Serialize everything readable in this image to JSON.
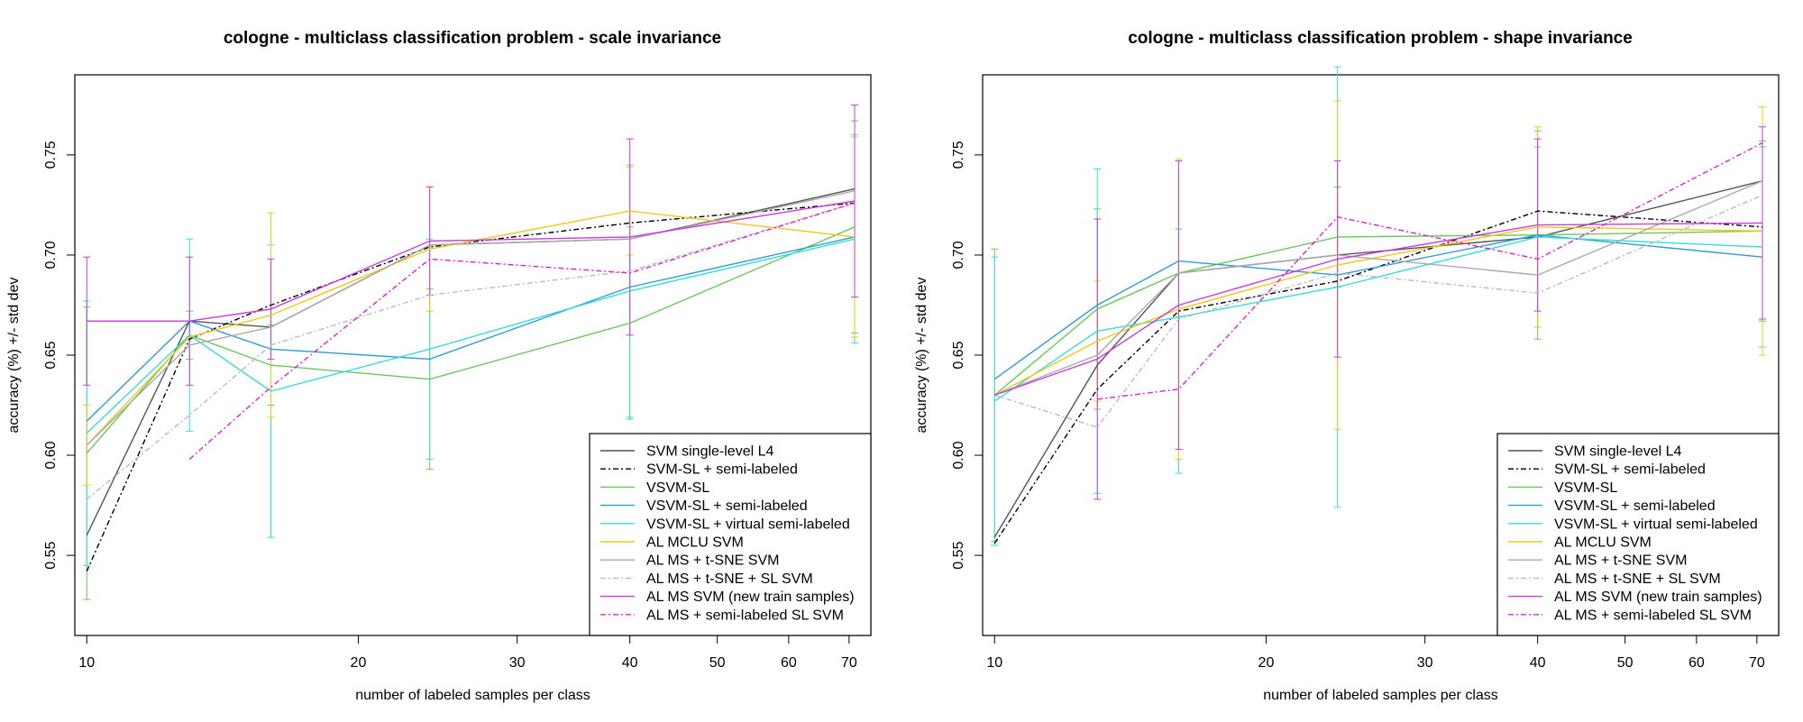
{
  "chart_data": [
    {
      "type": "line",
      "title": "cologne - multiclass classification problem - scale invariance",
      "xlabel": "number of labeled samples per class",
      "ylabel": "accuracy (%) +/- std dev",
      "x_scale": "log",
      "xlim": [
        9.7,
        74
      ],
      "ylim": [
        0.51,
        0.79
      ],
      "xticks": [
        10,
        20,
        30,
        40,
        50,
        60,
        70
      ],
      "yticks": [
        0.55,
        0.6,
        0.65,
        0.7,
        0.75
      ],
      "xtick_labels": [
        "10",
        "20",
        "30",
        "40",
        "50",
        "60",
        "70"
      ],
      "ytick_labels": [
        "0.55",
        "0.60",
        "0.65",
        "0.70",
        "0.75"
      ],
      "legend_position": "bottom-right",
      "x": [
        10,
        13,
        16,
        24,
        40,
        71
      ],
      "series": [
        {
          "name": "SVM single-level L4",
          "color": "#555555",
          "dash": "",
          "values": [
            0.56,
            0.667,
            0.664,
            0.705,
            0.708,
            0.733
          ],
          "err": []
        },
        {
          "name": "SVM-SL + semi-labeled",
          "color": "#000000",
          "dash": "6,3,2,3",
          "values": [
            0.542,
            0.658,
            0.675,
            0.704,
            0.716,
            0.726
          ],
          "err": []
        },
        {
          "name": "VSVM-SL",
          "color": "#6ac85a",
          "dash": "",
          "values": [
            0.601,
            0.66,
            0.645,
            0.638,
            0.666,
            0.714
          ],
          "err": [
            0.073,
            0.012,
            0.02,
            0.045,
            0.048,
            0.053
          ]
        },
        {
          "name": "VSVM-SL + semi-labeled",
          "color": "#2e9bd6",
          "dash": "",
          "values": [
            0.617,
            0.667,
            0.653,
            0.648,
            0.684,
            0.709
          ],
          "err": []
        },
        {
          "name": "VSVM-SL + virtual semi-labeled",
          "color": "#38dcd8",
          "dash": "",
          "values": [
            0.611,
            0.66,
            0.632,
            0.653,
            0.682,
            0.708
          ],
          "err": [
            0.066,
            0.048,
            0.073,
            0.055,
            0.063,
            0.052
          ]
        },
        {
          "name": "AL MCLU SVM",
          "color": "#f0c814",
          "dash": "",
          "values": [
            0.605,
            0.659,
            0.67,
            0.703,
            0.722,
            0.709
          ],
          "err": [
            0.02,
            0.0,
            0.051,
            0.031,
            0.022,
            0.05
          ]
        },
        {
          "name": "AL MS + t-SNE SVM",
          "color": "#aaaaaa",
          "dash": "",
          "values": [
            0.605,
            0.655,
            0.664,
            0.705,
            0.708,
            0.732
          ],
          "err": []
        },
        {
          "name": "AL MS + t-SNE + SL SVM",
          "color": "#bbbbbb",
          "dash": "6,3,2,3",
          "values": [
            0.578,
            0.62,
            0.655,
            0.68,
            0.692,
            0.726
          ],
          "err": []
        },
        {
          "name": "AL MS SVM (new train samples)",
          "color": "#c83cd8",
          "dash": "",
          "values": [
            0.667,
            0.667,
            0.673,
            0.707,
            0.709,
            0.727
          ],
          "err": [
            0.032,
            0.032,
            0.025,
            0.027,
            0.049,
            0.048
          ]
        },
        {
          "name": "AL MS + semi-labeled SL SVM",
          "color": "#e020d0",
          "dash": "6,3,2,3",
          "values": [
            null,
            0.598,
            0.634,
            0.698,
            0.691,
            0.726
          ],
          "err": []
        }
      ]
    },
    {
      "type": "line",
      "title": "cologne - multiclass classification problem - shape invariance",
      "xlabel": "number of labeled samples per class",
      "ylabel": "accuracy (%) +/- std dev",
      "x_scale": "log",
      "xlim": [
        9.7,
        74
      ],
      "ylim": [
        0.51,
        0.79
      ],
      "xticks": [
        10,
        20,
        30,
        40,
        50,
        60,
        70
      ],
      "yticks": [
        0.55,
        0.6,
        0.65,
        0.7,
        0.75
      ],
      "xtick_labels": [
        "10",
        "20",
        "30",
        "40",
        "50",
        "60",
        "70"
      ],
      "ytick_labels": [
        "0.55",
        "0.60",
        "0.65",
        "0.70",
        "0.75"
      ],
      "legend_position": "bottom-right",
      "x": [
        10,
        13,
        16,
        24,
        40,
        71
      ],
      "series": [
        {
          "name": "SVM single-level L4",
          "color": "#555555",
          "dash": "",
          "values": [
            0.559,
            0.645,
            0.691,
            0.7,
            0.709,
            0.737
          ],
          "err": []
        },
        {
          "name": "SVM-SL + semi-labeled",
          "color": "#000000",
          "dash": "6,3,2,3",
          "values": [
            0.556,
            0.633,
            0.672,
            0.687,
            0.722,
            0.714
          ],
          "err": []
        },
        {
          "name": "VSVM-SL",
          "color": "#6ac85a",
          "dash": "",
          "values": [
            0.63,
            0.673,
            0.691,
            0.709,
            0.71,
            0.712
          ],
          "err": [
            0.073,
            0.05,
            0.022,
            0.025,
            0.052,
            0.045
          ]
        },
        {
          "name": "VSVM-SL + semi-labeled",
          "color": "#2e9bd6",
          "dash": "",
          "values": [
            0.638,
            0.675,
            0.697,
            0.69,
            0.71,
            0.699
          ],
          "err": []
        },
        {
          "name": "VSVM-SL + virtual semi-labeled",
          "color": "#38dcd8",
          "dash": "",
          "values": [
            0.627,
            0.662,
            0.669,
            0.684,
            0.709,
            0.704
          ],
          "err": [
            0.072,
            0.081,
            0.078,
            0.11,
            0.045,
            0.05
          ]
        },
        {
          "name": "AL MCLU SVM",
          "color": "#f0c814",
          "dash": "",
          "values": [
            0.63,
            0.657,
            0.673,
            0.695,
            0.714,
            0.712
          ],
          "err": [
            0.0,
            0.03,
            0.075,
            0.082,
            0.05,
            0.062
          ]
        },
        {
          "name": "AL MS + t-SNE SVM",
          "color": "#aaaaaa",
          "dash": "",
          "values": [
            0.63,
            0.65,
            0.691,
            0.7,
            0.69,
            0.737
          ],
          "err": []
        },
        {
          "name": "AL MS + t-SNE + SL SVM",
          "color": "#bbbbbb",
          "dash": "6,3,2,3",
          "values": [
            0.63,
            0.614,
            0.668,
            0.691,
            0.681,
            0.73
          ],
          "err": []
        },
        {
          "name": "AL MS SVM (new train samples)",
          "color": "#c83cd8",
          "dash": "",
          "values": [
            0.63,
            0.648,
            0.675,
            0.698,
            0.715,
            0.716
          ],
          "err": [
            0.0,
            0.07,
            0.072,
            0.049,
            0.043,
            0.048
          ]
        },
        {
          "name": "AL MS + semi-labeled SL SVM",
          "color": "#e020d0",
          "dash": "6,3,2,3",
          "values": [
            null,
            0.628,
            0.633,
            0.719,
            0.698,
            0.756
          ],
          "err": []
        }
      ]
    }
  ]
}
